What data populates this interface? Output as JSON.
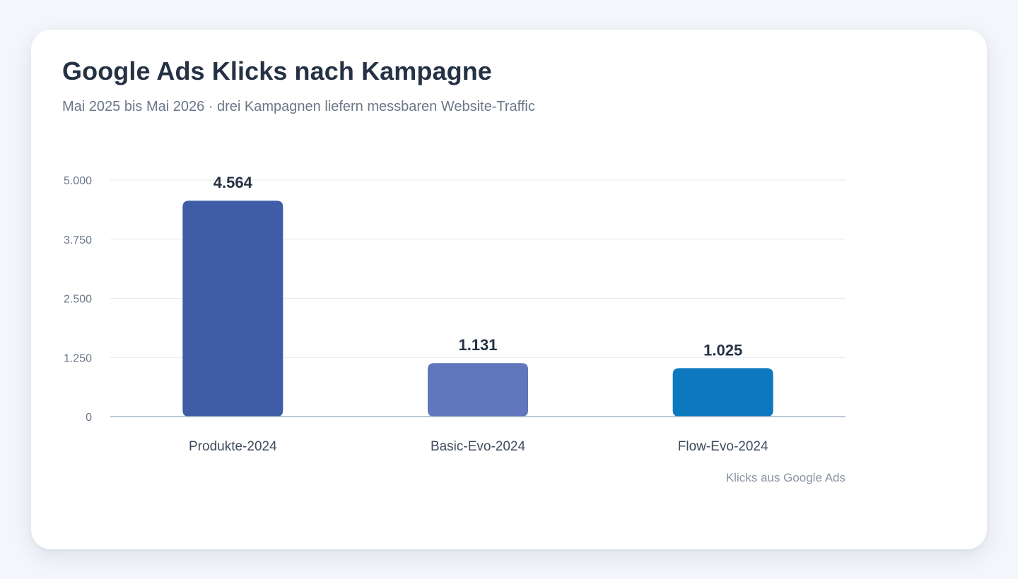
{
  "header": {
    "title": "Google Ads Klicks nach Kampagne",
    "subtitle": "Mai 2025 bis Mai 2026 · drei Kampagnen liefern messbaren Website-Traffic"
  },
  "chart_data": {
    "type": "bar",
    "categories": [
      "Produkte-2024",
      "Basic-Evo-2024",
      "Flow-Evo-2024"
    ],
    "values": [
      4564,
      1131,
      1025
    ],
    "value_labels": [
      "4.564",
      "1.131",
      "1.025"
    ],
    "colors": [
      "#3f5ca6",
      "#6077bd",
      "#0b78bf"
    ],
    "ylim": [
      0,
      5000
    ],
    "yticks": [
      0,
      1250,
      2500,
      3750,
      5000
    ],
    "ytick_labels": [
      "0",
      "1.250",
      "2.500",
      "3.750",
      "5.000"
    ],
    "grid": true,
    "source": "Klicks aus Google Ads"
  },
  "colors": {
    "background": "#f3f6fa",
    "card": "#ffffff",
    "title": "#253244",
    "grid": "#e3e8ee",
    "baseline": "#a9b6c6"
  }
}
